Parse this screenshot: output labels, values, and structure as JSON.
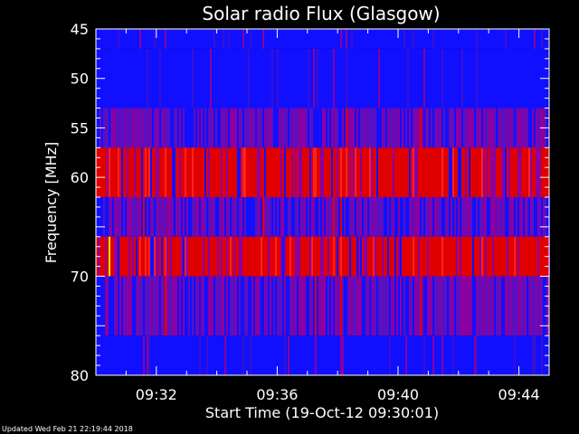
{
  "chart_data": {
    "type": "heatmap",
    "title": "Solar radio Flux (Glasgow)",
    "xlabel": "Start Time (19-Oct-12 09:30:01)",
    "ylabel": "Frequency [MHz]",
    "x_ticks": [
      "09:32",
      "09:36",
      "09:40",
      "09:44"
    ],
    "x_tick_minutes": [
      2,
      6,
      10,
      14
    ],
    "x_range_minutes": [
      0,
      15
    ],
    "y_ticks": [
      45,
      50,
      55,
      60,
      70,
      80
    ],
    "y_range": [
      45,
      80
    ],
    "frequency_bands": [
      {
        "from": 45,
        "to": 47,
        "level": "low"
      },
      {
        "from": 47,
        "to": 53,
        "level": "low"
      },
      {
        "from": 53,
        "to": 57,
        "level": "mixed"
      },
      {
        "from": 57,
        "to": 62,
        "level": "high"
      },
      {
        "from": 62,
        "to": 66,
        "level": "mixed"
      },
      {
        "from": 66,
        "to": 70,
        "level": "high"
      },
      {
        "from": 70,
        "to": 76,
        "level": "mixed"
      },
      {
        "from": 76,
        "to": 80,
        "level": "low"
      }
    ],
    "colors": {
      "low": "#1010ff",
      "mid": "#8a00a0",
      "high": "#e00000",
      "peak": "#ffe000"
    }
  },
  "footer": "Updated Wed Feb 21 22:19:44 2018"
}
